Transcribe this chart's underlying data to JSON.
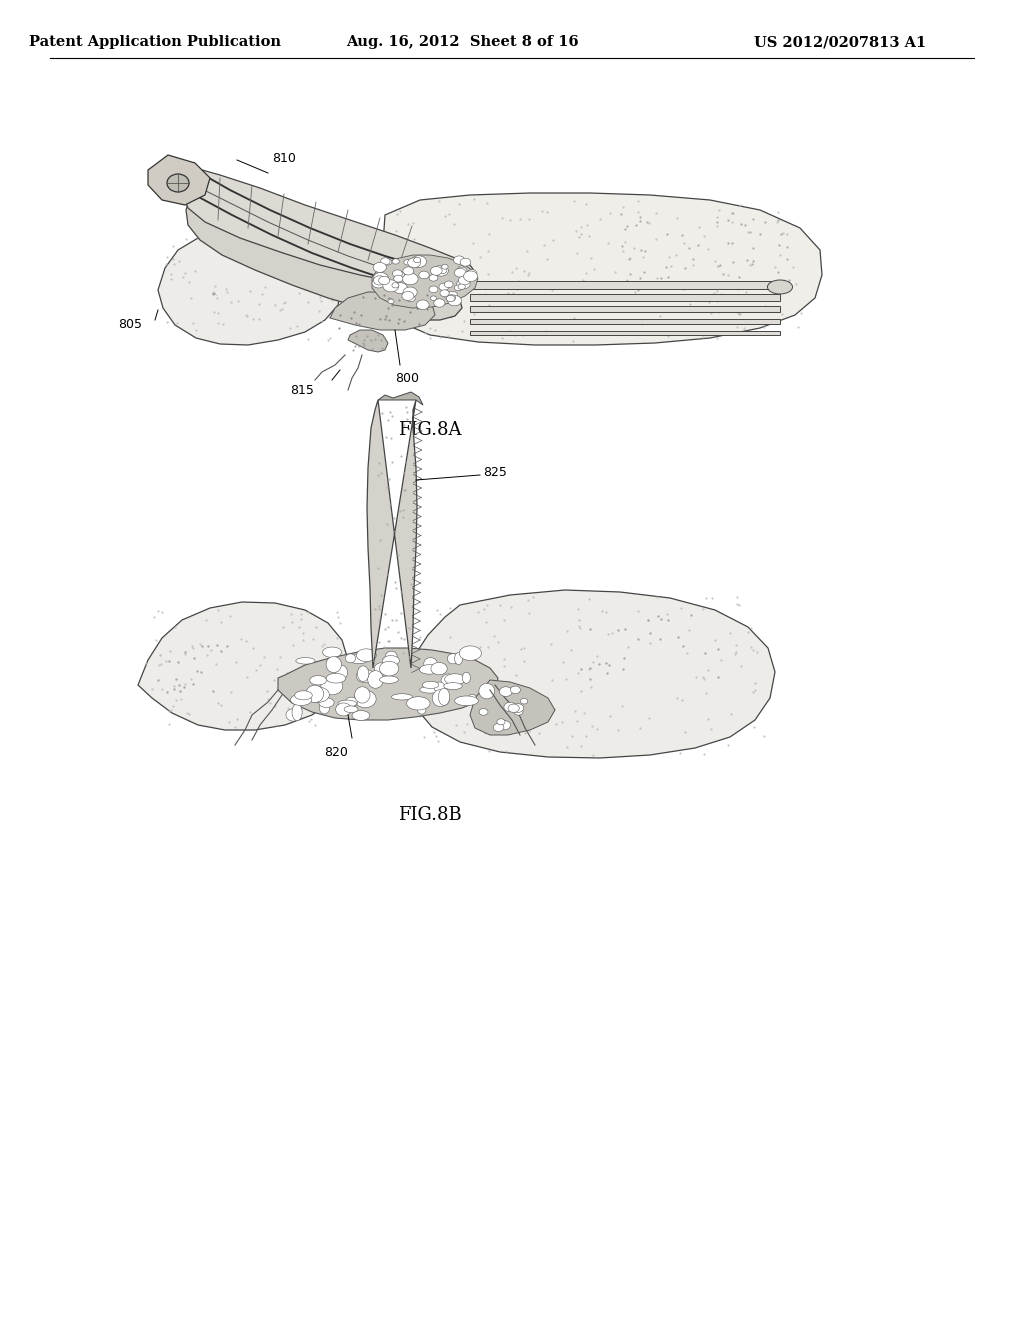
{
  "bg_color": "#ffffff",
  "text_color": "#000000",
  "header_left": "Patent Application Publication",
  "header_center": "Aug. 16, 2012  Sheet 8 of 16",
  "header_right": "US 2012/0207813 A1",
  "fig8a_label": "FIG.8A",
  "fig8b_label": "FIG.8B",
  "line_width": 0.9,
  "font_size_header": 10.5,
  "font_size_label": 9,
  "font_size_fig": 13
}
